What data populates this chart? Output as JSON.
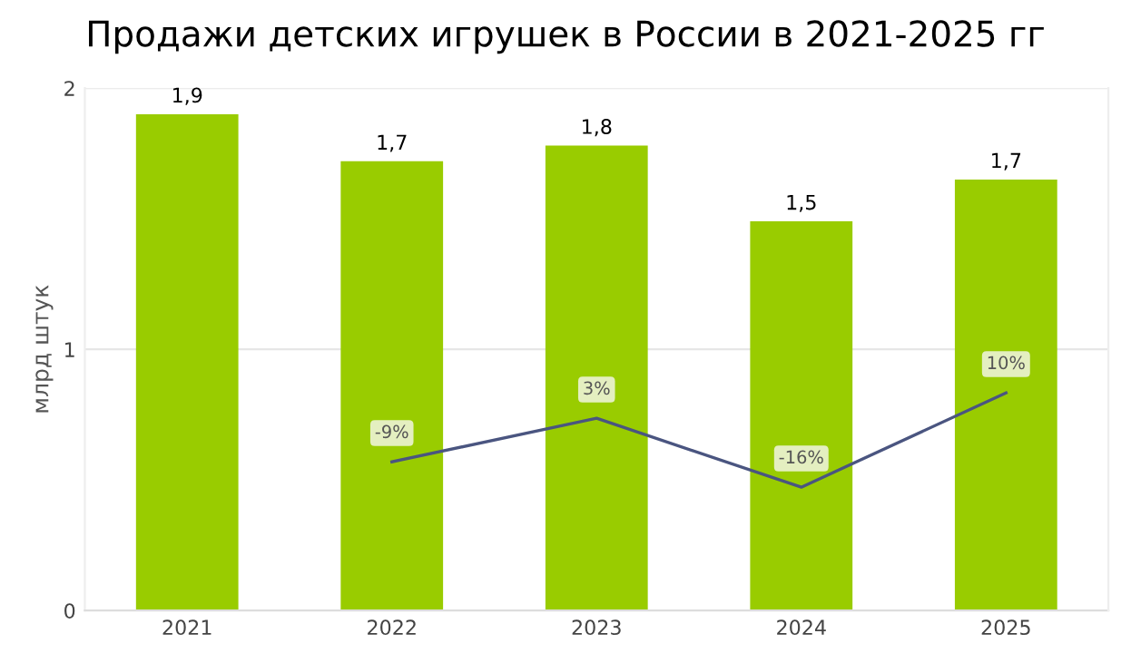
{
  "chart_data": {
    "type": "bar",
    "title": "Продажи детских игрушек в России в 2021-2025 гг",
    "ylabel": "млрд штук",
    "categories": [
      "2021",
      "2022",
      "2023",
      "2024",
      "2025"
    ],
    "series": [
      {
        "color": "#99cc00",
        "values": [
          1.9,
          1.72,
          1.78,
          1.49,
          1.65
        ],
        "value_labels": [
          "1,9",
          "1,7",
          "1,8",
          "1,5",
          "1,7"
        ]
      },
      {
        "type": "line",
        "axis": "y2",
        "color": "#4a5580",
        "values": [
          null,
          -9,
          3,
          -16,
          10
        ],
        "value_labels": [
          null,
          "-9%",
          "3%",
          "-16%",
          "10%"
        ]
      }
    ],
    "ylim": [
      0,
      2
    ],
    "yticks": [
      0,
      1,
      2
    ],
    "y2lim": [
      -50,
      94
    ],
    "grid": "y",
    "legend": false,
    "tick_labels": "xy"
  }
}
